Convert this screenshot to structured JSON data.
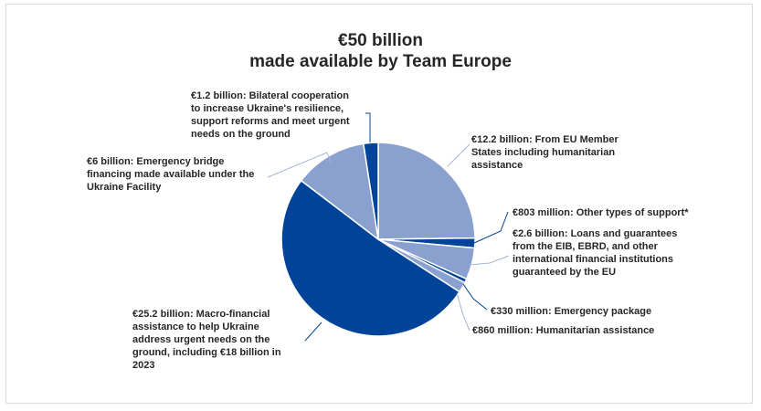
{
  "chart_data": {
    "type": "pie",
    "title_line1": "€50 billion",
    "title_line2": "made available by Team Europe",
    "colors": {
      "dark": "#00449a",
      "light": "#8aa0cf",
      "leader": "#a6b4d6"
    },
    "slices": [
      {
        "value": 12.2,
        "color": "#8aa0cf",
        "label": "€12.2 billion: From EU Member States including humanitarian assistance"
      },
      {
        "value": 0.803,
        "color": "#00449a",
        "label": "€803 million: Other types of support*"
      },
      {
        "value": 2.6,
        "color": "#8aa0cf",
        "label": "€2.6 billion: Loans and guarantees from the EIB, EBRD, and other international financial institutions guaranteed by the EU"
      },
      {
        "value": 0.33,
        "color": "#00449a",
        "label": "€330 million: Emergency package"
      },
      {
        "value": 0.86,
        "color": "#8aa0cf",
        "label": "€860 million: Humanitarian assistance"
      },
      {
        "value": 25.2,
        "color": "#00449a",
        "label": "€25.2 billion: Macro-financial assistance to help Ukraine address urgent needs on the ground, including €18 billion in 2023"
      },
      {
        "value": 6,
        "color": "#8aa0cf",
        "label": "€6 billion: Emergency bridge financing made available under the Ukraine Facility"
      },
      {
        "value": 1.2,
        "color": "#00449a",
        "label": "€1.2 billion: Bilateral cooperation to increase Ukraine's resilience, support reforms and meet urgent needs on the ground"
      }
    ]
  }
}
